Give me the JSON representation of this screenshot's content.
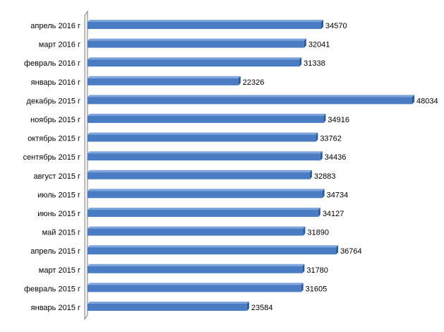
{
  "chart_data": {
    "type": "bar",
    "orientation": "horizontal",
    "categories": [
      "апрель 2016 г",
      "март 2016 г",
      "февраль 2016 г",
      "январь 2016 г",
      "декабрь 2015 г",
      "ноябрь 2015 г",
      "октябрь 2015 г",
      "сентябрь 2015 г",
      "август 2015 г",
      "июль 2015 г",
      "июнь 2015 г",
      "май 2015 г",
      "апрель 2015 г",
      "март 2015 г",
      "февраль 2015 г",
      "январь 2015 г"
    ],
    "values": [
      34570,
      32041,
      31338,
      22326,
      48034,
      34916,
      33762,
      34436,
      32883,
      34734,
      34127,
      31890,
      36764,
      31780,
      31605,
      23584
    ],
    "xlim": [
      0,
      48034
    ],
    "grid": false,
    "legend": "none",
    "data_labels": true,
    "style": "3d",
    "colors": {
      "bar_front": "#4a7cc4",
      "bar_top": "#7da5dc",
      "bar_side": "#2c5a96",
      "axis_wall": "#808080"
    }
  }
}
